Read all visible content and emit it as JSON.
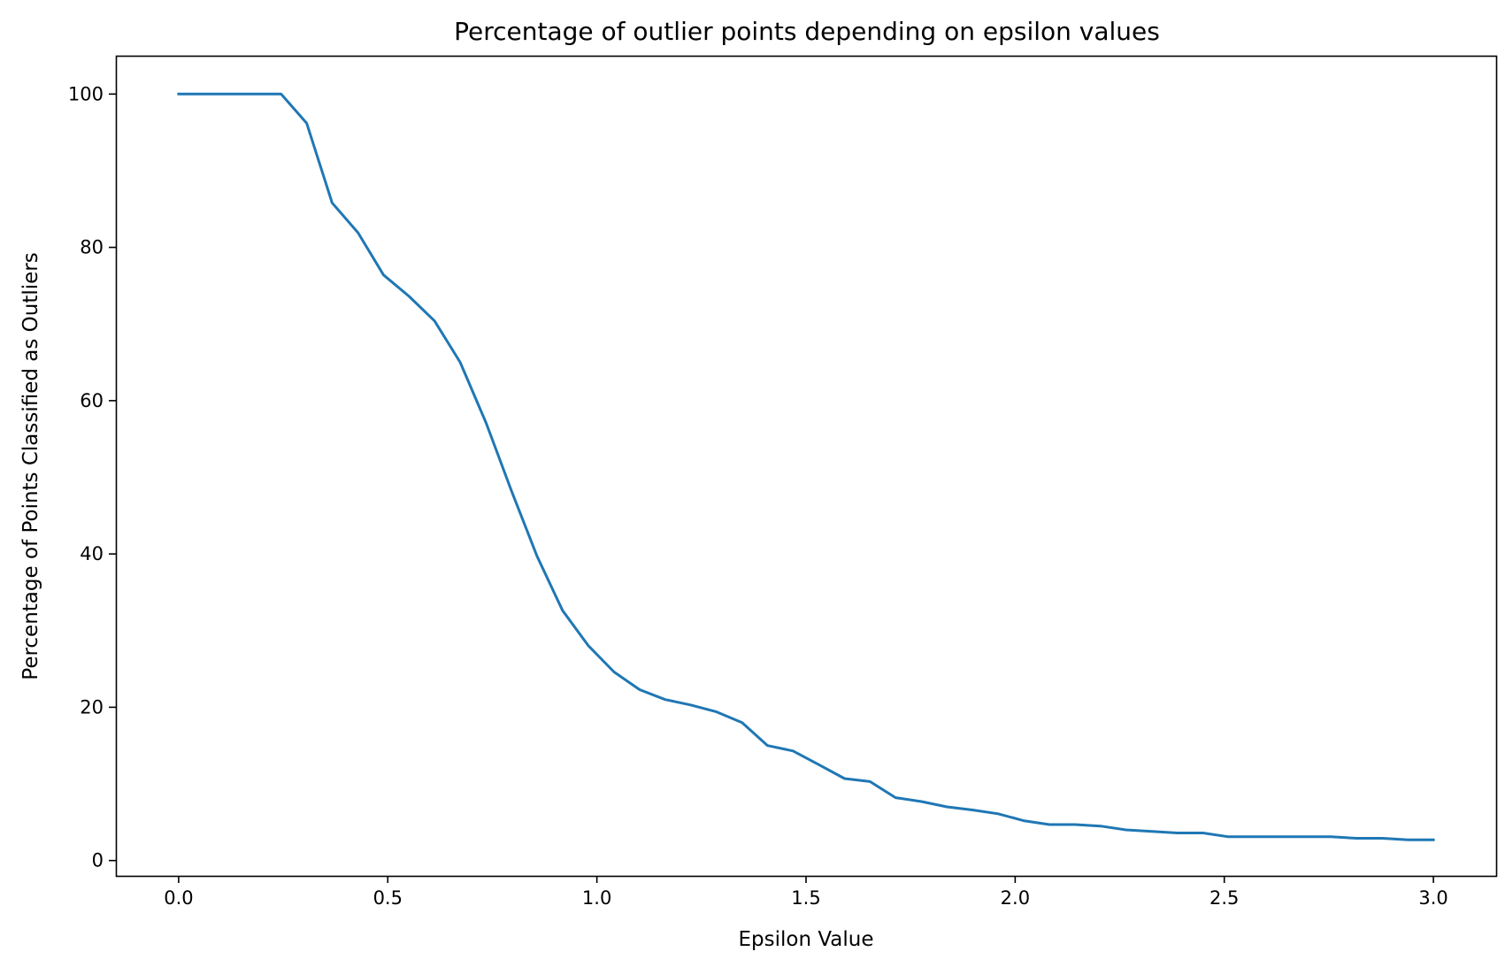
{
  "chart_data": {
    "type": "line",
    "title": "Percentage of outlier points depending on epsilon values",
    "xlabel": "Epsilon Value",
    "ylabel": "Percentage of Points Classified as Outliers",
    "xlim": [
      -0.15,
      3.15
    ],
    "ylim": [
      -2,
      105
    ],
    "grid": false,
    "x_ticks": [
      {
        "value": 0.0,
        "label": "0.0"
      },
      {
        "value": 0.5,
        "label": "0.5"
      },
      {
        "value": 1.0,
        "label": "1.0"
      },
      {
        "value": 1.5,
        "label": "1.5"
      },
      {
        "value": 2.0,
        "label": "2.0"
      },
      {
        "value": 2.5,
        "label": "2.5"
      },
      {
        "value": 3.0,
        "label": "3.0"
      }
    ],
    "y_ticks": [
      {
        "value": 0,
        "label": "0"
      },
      {
        "value": 20,
        "label": "20"
      },
      {
        "value": 40,
        "label": "40"
      },
      {
        "value": 60,
        "label": "60"
      },
      {
        "value": 80,
        "label": "80"
      },
      {
        "value": 100,
        "label": "100"
      }
    ],
    "series": [
      {
        "color": "#1f77b4",
        "x": [
          0.0,
          0.061,
          0.122,
          0.184,
          0.245,
          0.306,
          0.367,
          0.429,
          0.49,
          0.551,
          0.612,
          0.673,
          0.735,
          0.796,
          0.857,
          0.918,
          0.98,
          1.041,
          1.102,
          1.163,
          1.224,
          1.286,
          1.347,
          1.408,
          1.469,
          1.531,
          1.592,
          1.653,
          1.714,
          1.776,
          1.837,
          1.898,
          1.959,
          2.02,
          2.082,
          2.143,
          2.204,
          2.265,
          2.327,
          2.388,
          2.449,
          2.51,
          2.571,
          2.633,
          2.694,
          2.755,
          2.816,
          2.878,
          2.939,
          3.0
        ],
        "y": [
          100,
          100,
          100,
          100,
          100,
          96.2,
          85.8,
          81.9,
          76.4,
          73.6,
          70.4,
          65.0,
          57.1,
          48.2,
          39.7,
          32.6,
          28.0,
          24.6,
          22.3,
          21.0,
          20.3,
          19.4,
          18.0,
          15.0,
          14.3,
          12.5,
          10.7,
          10.3,
          8.2,
          7.7,
          7.0,
          6.6,
          6.1,
          5.2,
          4.7,
          4.7,
          4.5,
          4.0,
          3.8,
          3.6,
          3.6,
          3.1,
          3.1,
          3.1,
          3.1,
          3.1,
          2.9,
          2.9,
          2.7,
          2.7
        ]
      }
    ]
  }
}
